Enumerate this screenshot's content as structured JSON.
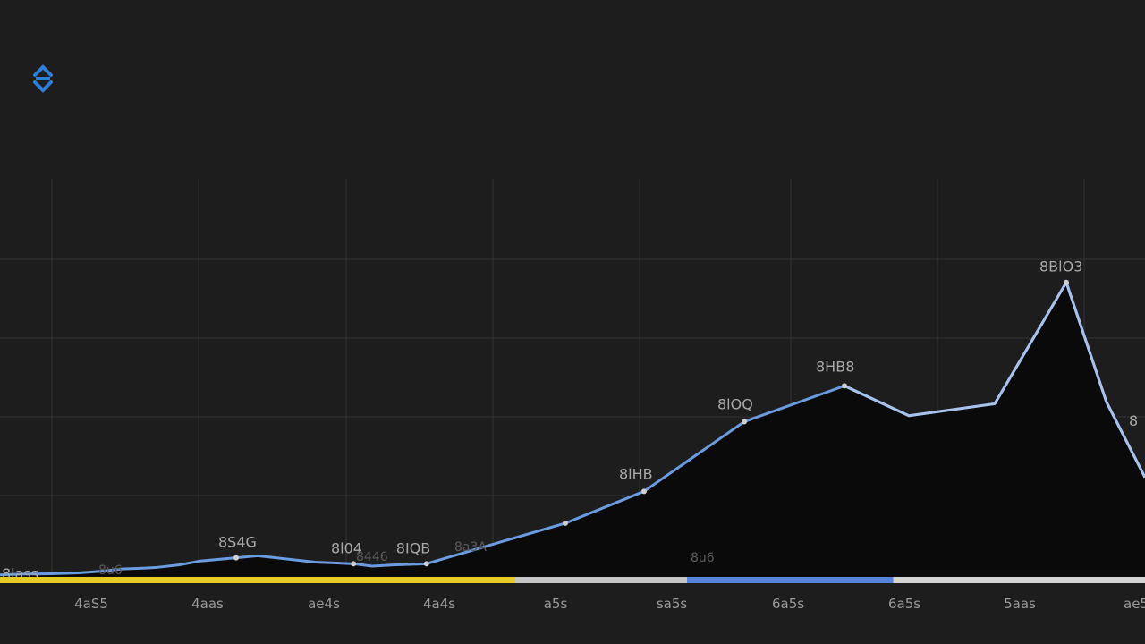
{
  "app": {
    "logo_icon": "app-logo-icon",
    "logo_color": "#2f7fd8"
  },
  "chart_data": {
    "type": "area",
    "title": "",
    "xlabel": "",
    "ylabel": "",
    "grid": true,
    "categories": [
      "4aS5",
      "4aas",
      "ae4s",
      "4a4s",
      "a5s",
      "sa5s",
      "6a5s",
      "6a5s",
      "5aas",
      "ae5"
    ],
    "series": [
      {
        "x": [
          0,
          0.15,
          0.35,
          0.55,
          0.73,
          0.85,
          1.0,
          1.1,
          1.25,
          1.4,
          1.65,
          1.8,
          2.2,
          2.47,
          2.6,
          2.75,
          2.98,
          3.5,
          3.95,
          4.5,
          5.2,
          5.9,
          6.35,
          6.95,
          7.45,
          7.73,
          8.0
        ],
        "values": [
          0.5,
          0.7,
          0.8,
          1.0,
          1.5,
          2.0,
          2.2,
          2.4,
          3.0,
          4.0,
          4.8,
          5.3,
          3.7,
          3.3,
          2.7,
          3.0,
          3.3,
          8.8,
          13.5,
          21.5,
          39.0,
          48.0,
          40.5,
          43.5,
          74.0,
          44.0,
          25.0
        ]
      }
    ],
    "data_labels": [
      "8lass",
      "8S4G",
      "8l04",
      "8IQB",
      "8lHB",
      "8lOQ",
      "8HB8",
      "8BlO3"
    ],
    "faint_labels": [
      "8u6",
      "8446",
      "8a3A",
      "8u6"
    ],
    "right_edge_label": "8",
    "colors": {
      "line": "#6b9be0",
      "line_highlight": "#a8c2ec",
      "area": "#0a0a0a",
      "grid": "#333333",
      "axis_bar_left": "#e6cc22",
      "axis_bar_mid": "#c6c6c6",
      "axis_bar_accent": "#5584d8",
      "axis_bar_right": "#d4d4d4"
    },
    "axis_bar_segments": [
      {
        "to": 0.45,
        "color": "#e6cc22"
      },
      {
        "to": 0.6,
        "color": "#c6c6c6"
      },
      {
        "to": 0.78,
        "color": "#5584d8"
      },
      {
        "to": 1.0,
        "color": "#d4d4d4"
      }
    ]
  }
}
